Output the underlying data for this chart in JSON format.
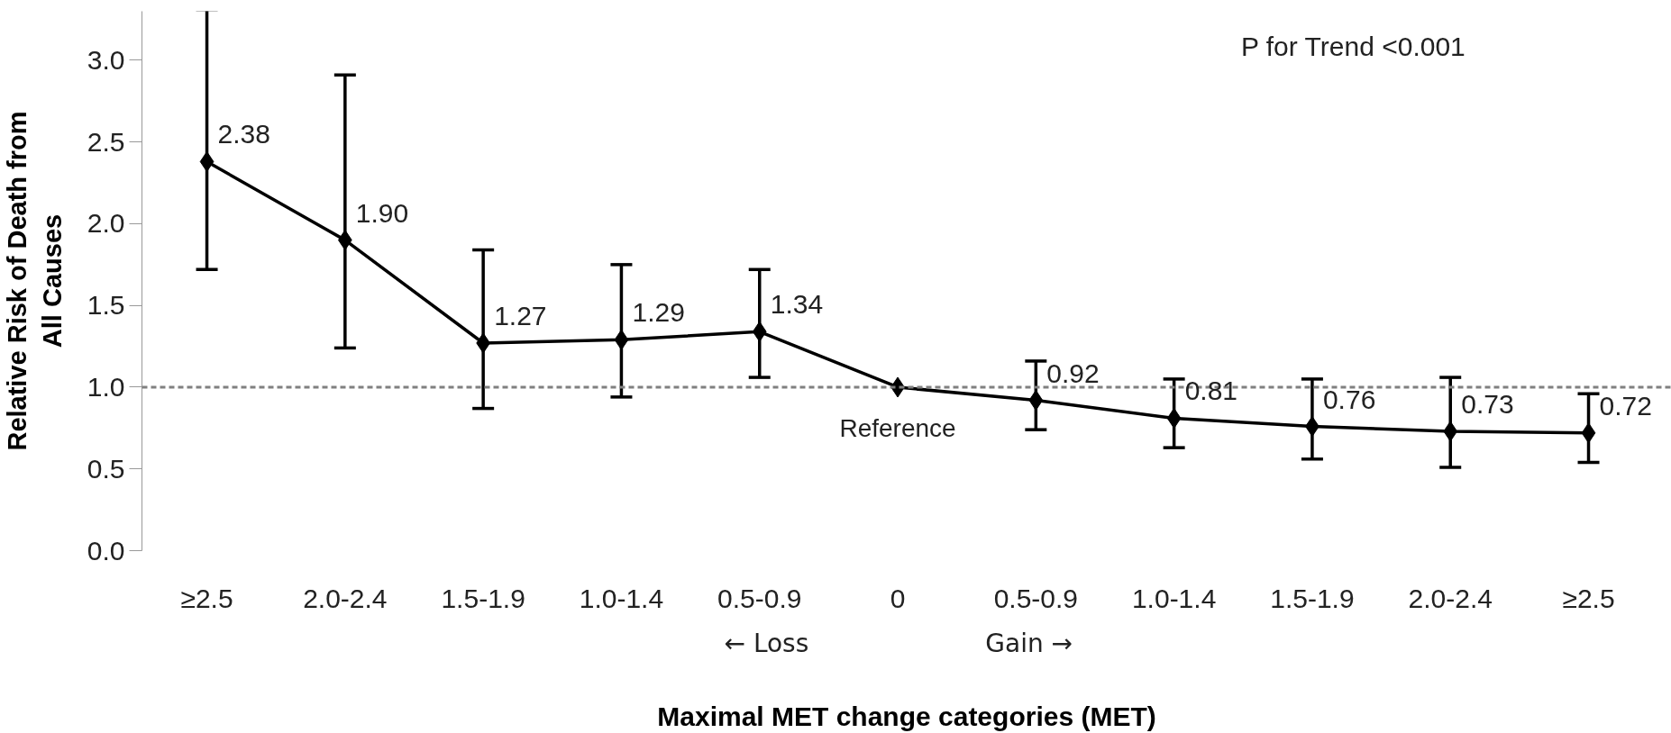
{
  "chart_data": {
    "type": "line",
    "xlabel": "Maximal MET change categories (MET)",
    "ylabel": "Relative Risk of Death from\nAll Causes",
    "categories": [
      "≥2.5",
      "2.0-2.4",
      "1.5-1.9",
      "1.0-1.4",
      "0.5-0.9",
      "0",
      "0.5-0.9",
      "1.0-1.4",
      "1.5-1.9",
      "2.0-2.4",
      "≥2.5"
    ],
    "series": [
      {
        "color": "#000000",
        "values": [
          2.38,
          1.9,
          1.27,
          1.29,
          1.34,
          1.0,
          0.92,
          0.81,
          0.76,
          0.73,
          0.72
        ],
        "errors": [
          [
            1.72,
            3.31
          ],
          [
            1.24,
            2.91
          ],
          [
            0.87,
            1.84
          ],
          [
            0.94,
            1.75
          ],
          [
            1.06,
            1.72
          ],
          null,
          [
            0.74,
            1.16
          ],
          [
            0.63,
            1.05
          ],
          [
            0.56,
            1.05
          ],
          [
            0.51,
            1.06
          ],
          [
            0.54,
            0.96
          ]
        ],
        "value_labels": [
          "2.38",
          "1.90",
          "1.27",
          "1.29",
          "1.34",
          "Reference",
          "0.92",
          "0.81",
          "0.76",
          "0.73",
          "0.72"
        ]
      }
    ],
    "ylim": [
      0,
      3.3
    ],
    "yticks": [
      {
        "value": 0,
        "label": "0.0"
      },
      {
        "value": 0.5,
        "label": "0.5"
      },
      {
        "value": 1,
        "label": "1.0"
      },
      {
        "value": 1.5,
        "label": "1.5"
      },
      {
        "value": 2,
        "label": "2.0"
      },
      {
        "value": 2.5,
        "label": "2.5"
      },
      {
        "value": 3,
        "label": "3.0"
      }
    ],
    "ref_lines": [
      {
        "axis": "y",
        "value": 1.0,
        "color": "#808080",
        "line_style": "dashed"
      }
    ],
    "annotations": [
      "P for Trend <0.001",
      "← Loss",
      "Gain →"
    ],
    "marker": "diamond",
    "line_style": "solid",
    "grid": false
  }
}
